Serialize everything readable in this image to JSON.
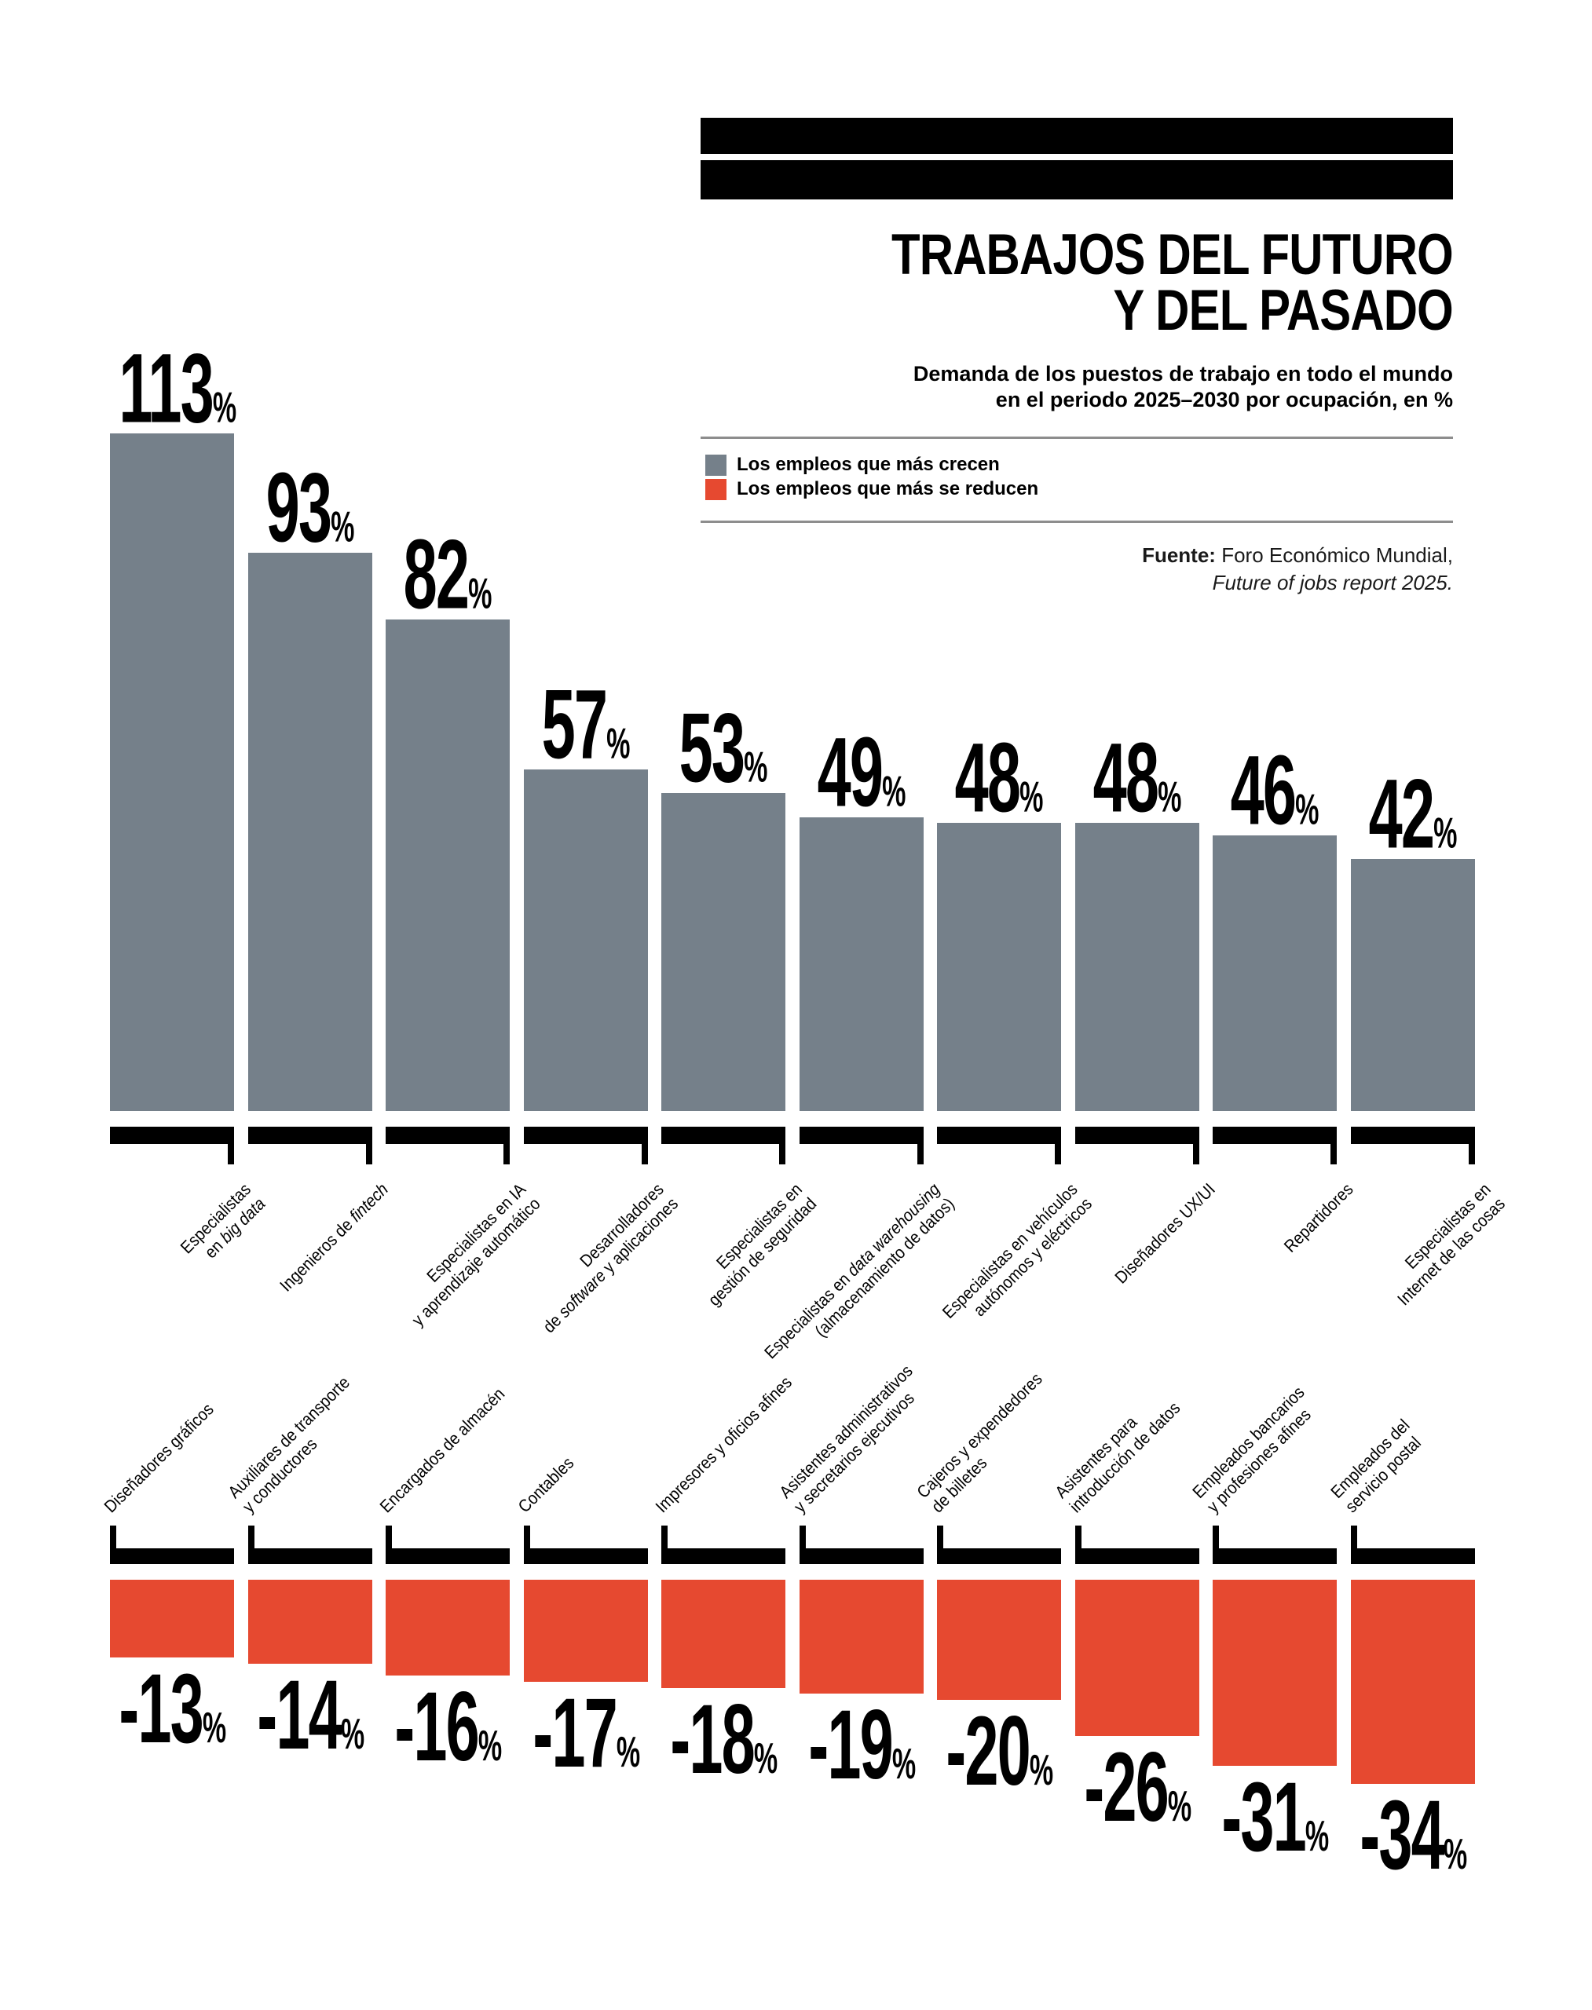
{
  "header": {
    "title_line1": "TRABAJOS DEL FUTURO",
    "title_line2": "Y DEL PASADO",
    "subtitle_line1": "Demanda de los puestos de trabajo en todo el mundo",
    "subtitle_line2": "en el periodo 2025–2030 por ocupación, en %"
  },
  "legend": {
    "grow_label": "Los empleos que más crecen",
    "shrink_label": "Los empleos que más se reducen"
  },
  "source": {
    "label": "Fuente:",
    "text": " Foro Económico Mundial,",
    "line2": "Future of jobs report 2025."
  },
  "colors": {
    "grow": "#75808a",
    "shrink": "#e64930",
    "black": "#000000",
    "rule": "#8d8d8d"
  },
  "chart_data": {
    "type": "bar",
    "title": "TRABAJOS DEL FUTURO Y DEL PASADO",
    "subtitle": "Demanda de los puestos de trabajo en todo el mundo en el periodo 2025–2030 por ocupación, en %",
    "unit": "%",
    "ylim": [
      -34,
      113
    ],
    "grid": false,
    "legend_position": "top-right",
    "source": "Fuente: Foro Económico Mundial, Future of jobs report 2025.",
    "series": [
      {
        "name": "Los empleos que más crecen",
        "color": "#75808a",
        "points": [
          {
            "label": "Especialistas\nen *big data*",
            "value": 113
          },
          {
            "label": "Ingenieros de *fintech*",
            "value": 93
          },
          {
            "label": "Especialistas en IA\ny aprendizaje automático",
            "value": 82
          },
          {
            "label": "Desarrolladores\nde *software* y aplicaciones",
            "value": 57
          },
          {
            "label": "Especialistas en\ngestión de seguridad",
            "value": 53
          },
          {
            "label": "Especialistas en *data warehousing*\n(almacenamiento de datos)",
            "value": 49
          },
          {
            "label": "Especialistas en vehículos\nautónomos y eléctricos",
            "value": 48
          },
          {
            "label": "Diseñadores UX/UI",
            "value": 48
          },
          {
            "label": "Repartidores",
            "value": 46
          },
          {
            "label": "Especialistas en\nInternet de las cosas",
            "value": 42
          }
        ]
      },
      {
        "name": "Los empleos que más se reducen",
        "color": "#e64930",
        "points": [
          {
            "label": "Diseñadores gráficos",
            "value": -13
          },
          {
            "label": "Auxiliares de transporte\ny conductores",
            "value": -14
          },
          {
            "label": "Encargados de almacén",
            "value": -16
          },
          {
            "label": "Contables",
            "value": -17
          },
          {
            "label": "Impresores y oficios afines",
            "value": -18
          },
          {
            "label": "Asistentes administrativos\ny secretarios ejecutivos",
            "value": -19
          },
          {
            "label": "Cajeros y expendedores\nde billetes",
            "value": -20
          },
          {
            "label": "Asistentes para\nintroducción de datos",
            "value": -26
          },
          {
            "label": "Empleados bancarios\ny profesiones afines",
            "value": -31
          },
          {
            "label": "Empleados del\nservicio postal",
            "value": -34
          }
        ]
      }
    ]
  }
}
